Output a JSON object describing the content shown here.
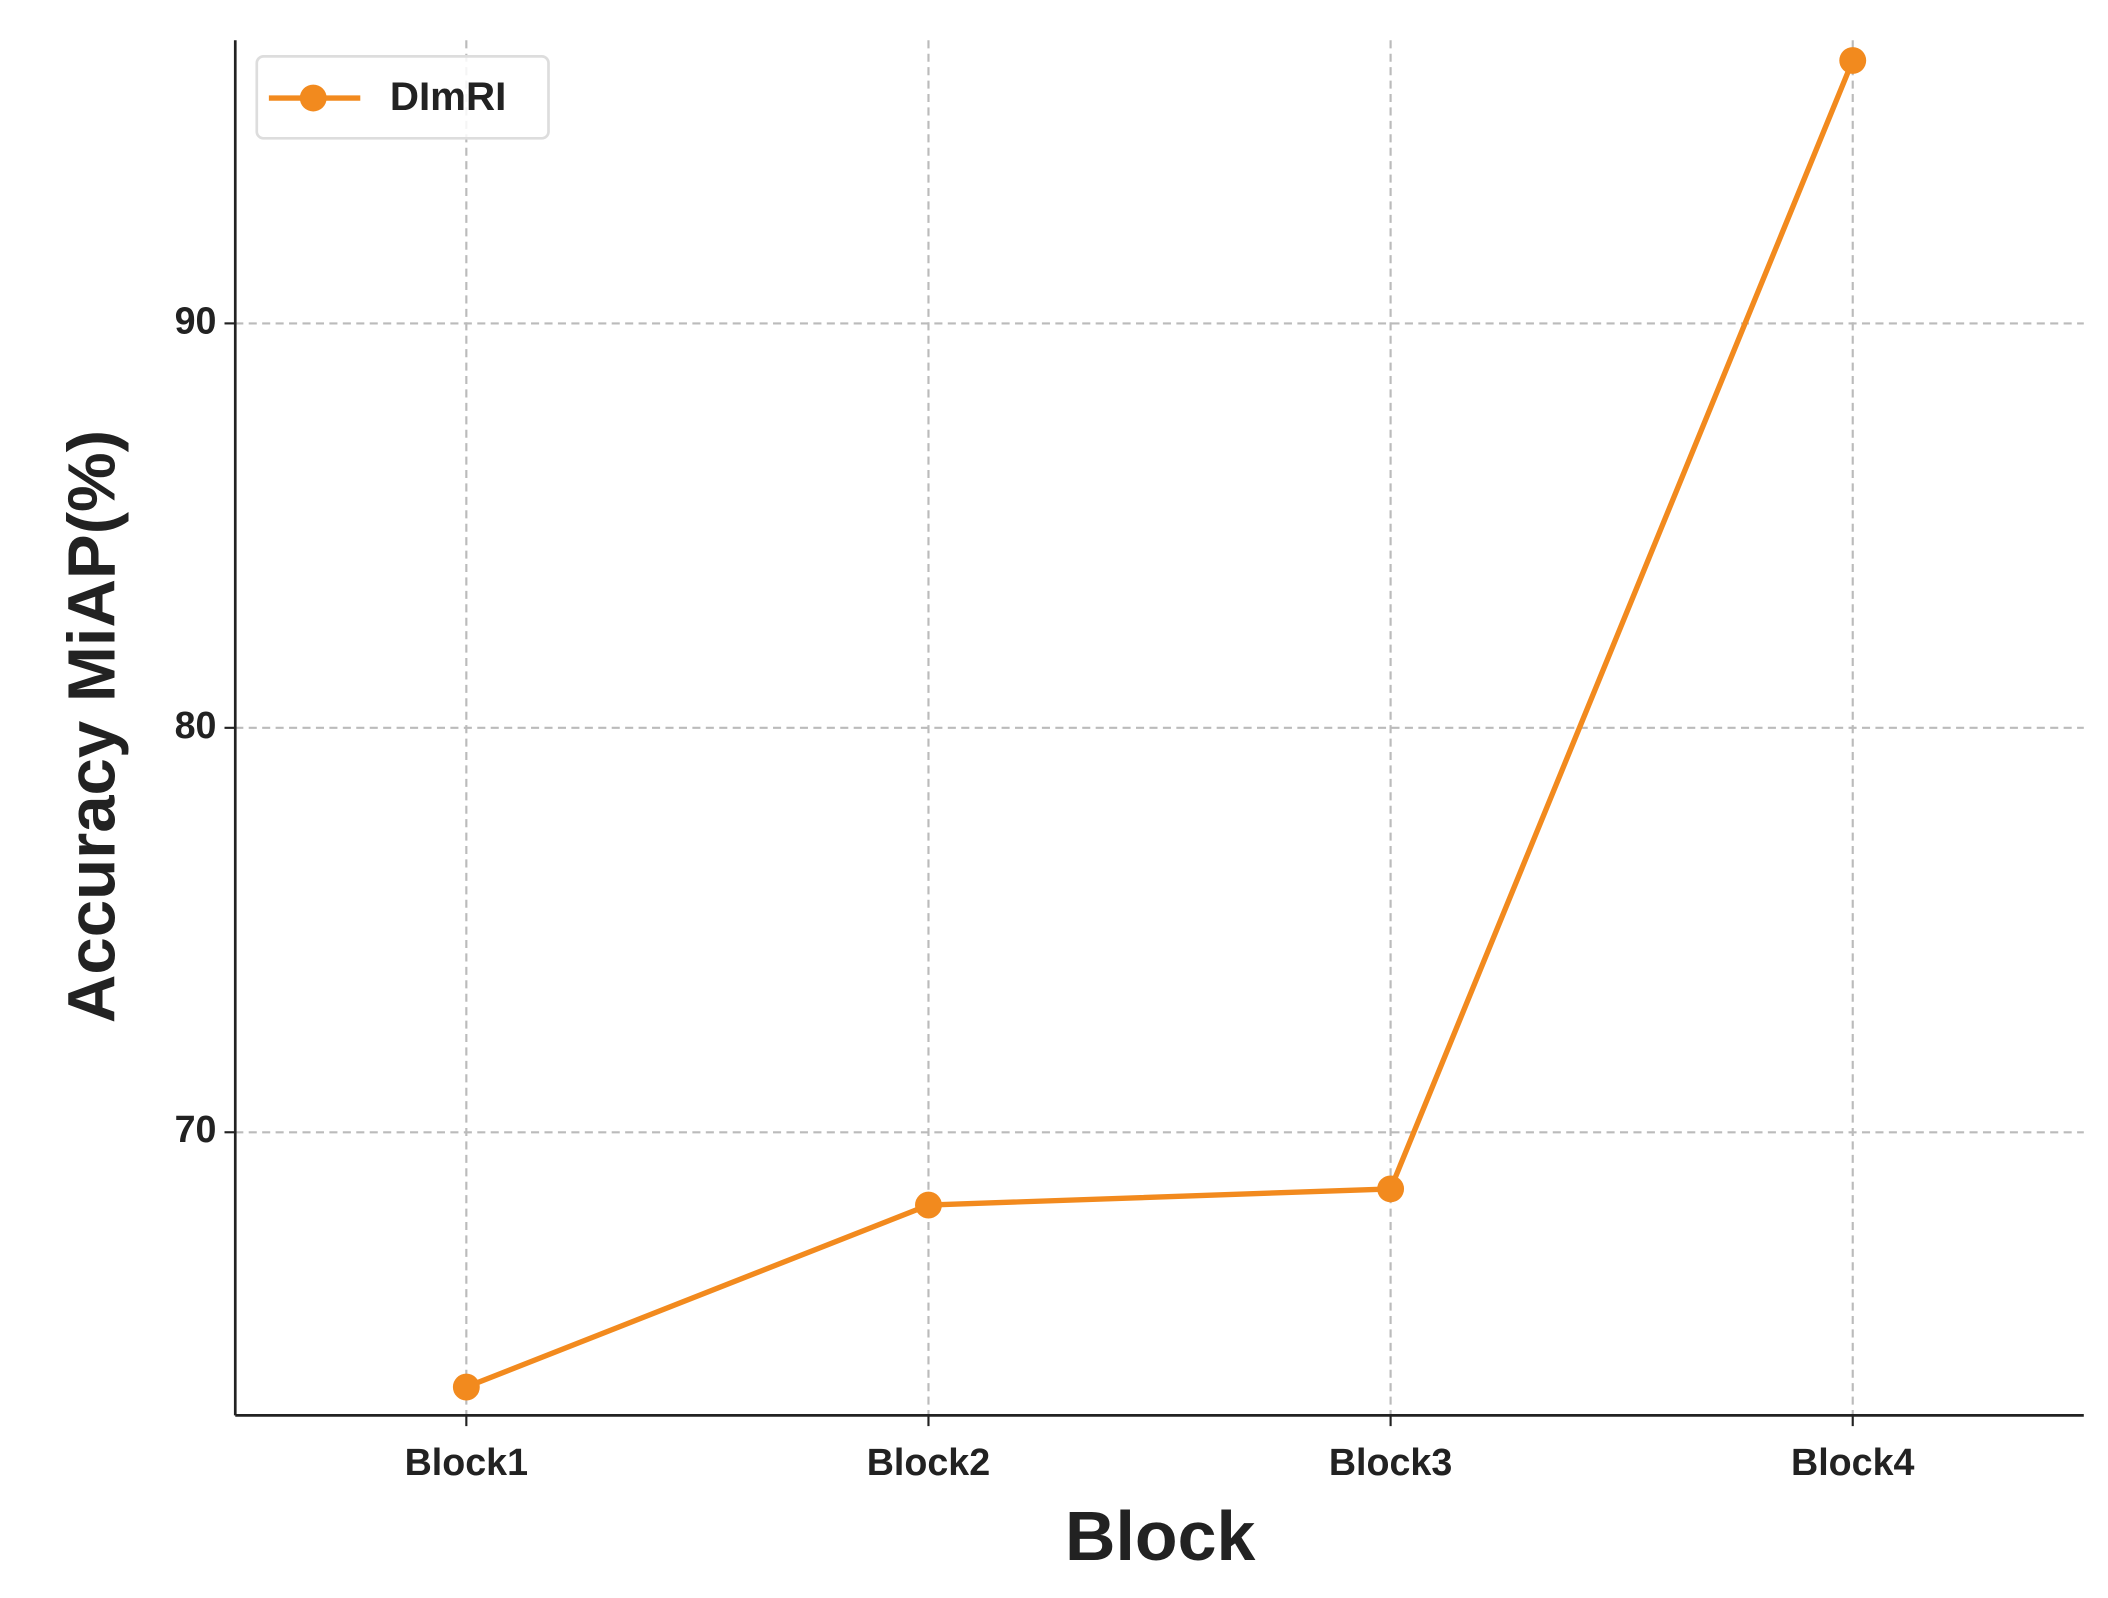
{
  "chart_data": {
    "type": "line",
    "x_label": "Block",
    "y_label": "Accuracy MiAP(%)",
    "categories": [
      "Block1",
      "Block2",
      "Block3",
      "Block4"
    ],
    "series": [
      {
        "name": "DImRI",
        "color": "#f28a1e",
        "values": [
          63.7,
          68.2,
          68.6,
          96.5
        ]
      }
    ],
    "ylim": [
      63,
      97
    ],
    "yticks": [
      70,
      80,
      90
    ],
    "grid": true,
    "legend": "upper left"
  }
}
